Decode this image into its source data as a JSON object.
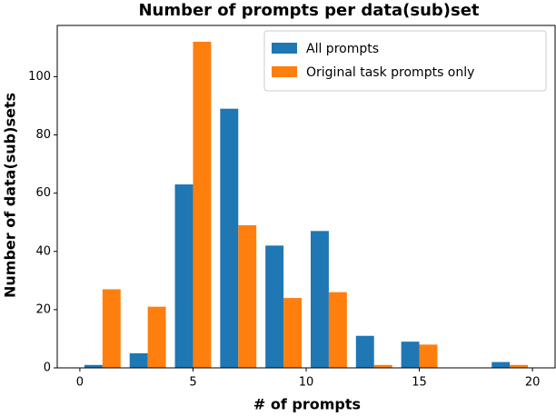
{
  "chart_data": {
    "type": "histogram",
    "title": "Number of prompts per data(sub)set",
    "x_label": "# of prompts",
    "y_label": "Number of data(sub)sets",
    "bins": [
      0,
      2,
      4,
      6,
      8,
      10,
      12,
      14,
      16,
      18,
      20
    ],
    "series": [
      {
        "name": "All prompts",
        "color": "#1f77b4",
        "values": [
          1,
          5,
          63,
          89,
          42,
          47,
          11,
          9,
          0,
          2
        ]
      },
      {
        "name": "Original task prompts only",
        "color": "#ff7f0e",
        "values": [
          27,
          21,
          112,
          49,
          24,
          26,
          1,
          8,
          0,
          1
        ]
      }
    ],
    "xlim": [
      -1,
      21
    ],
    "ylim": [
      0,
      117.6
    ],
    "xticks": [
      0,
      5,
      10,
      15,
      20
    ],
    "yticks": [
      0,
      20,
      40,
      60,
      80,
      100
    ],
    "legend": "upper right",
    "grid": false
  }
}
